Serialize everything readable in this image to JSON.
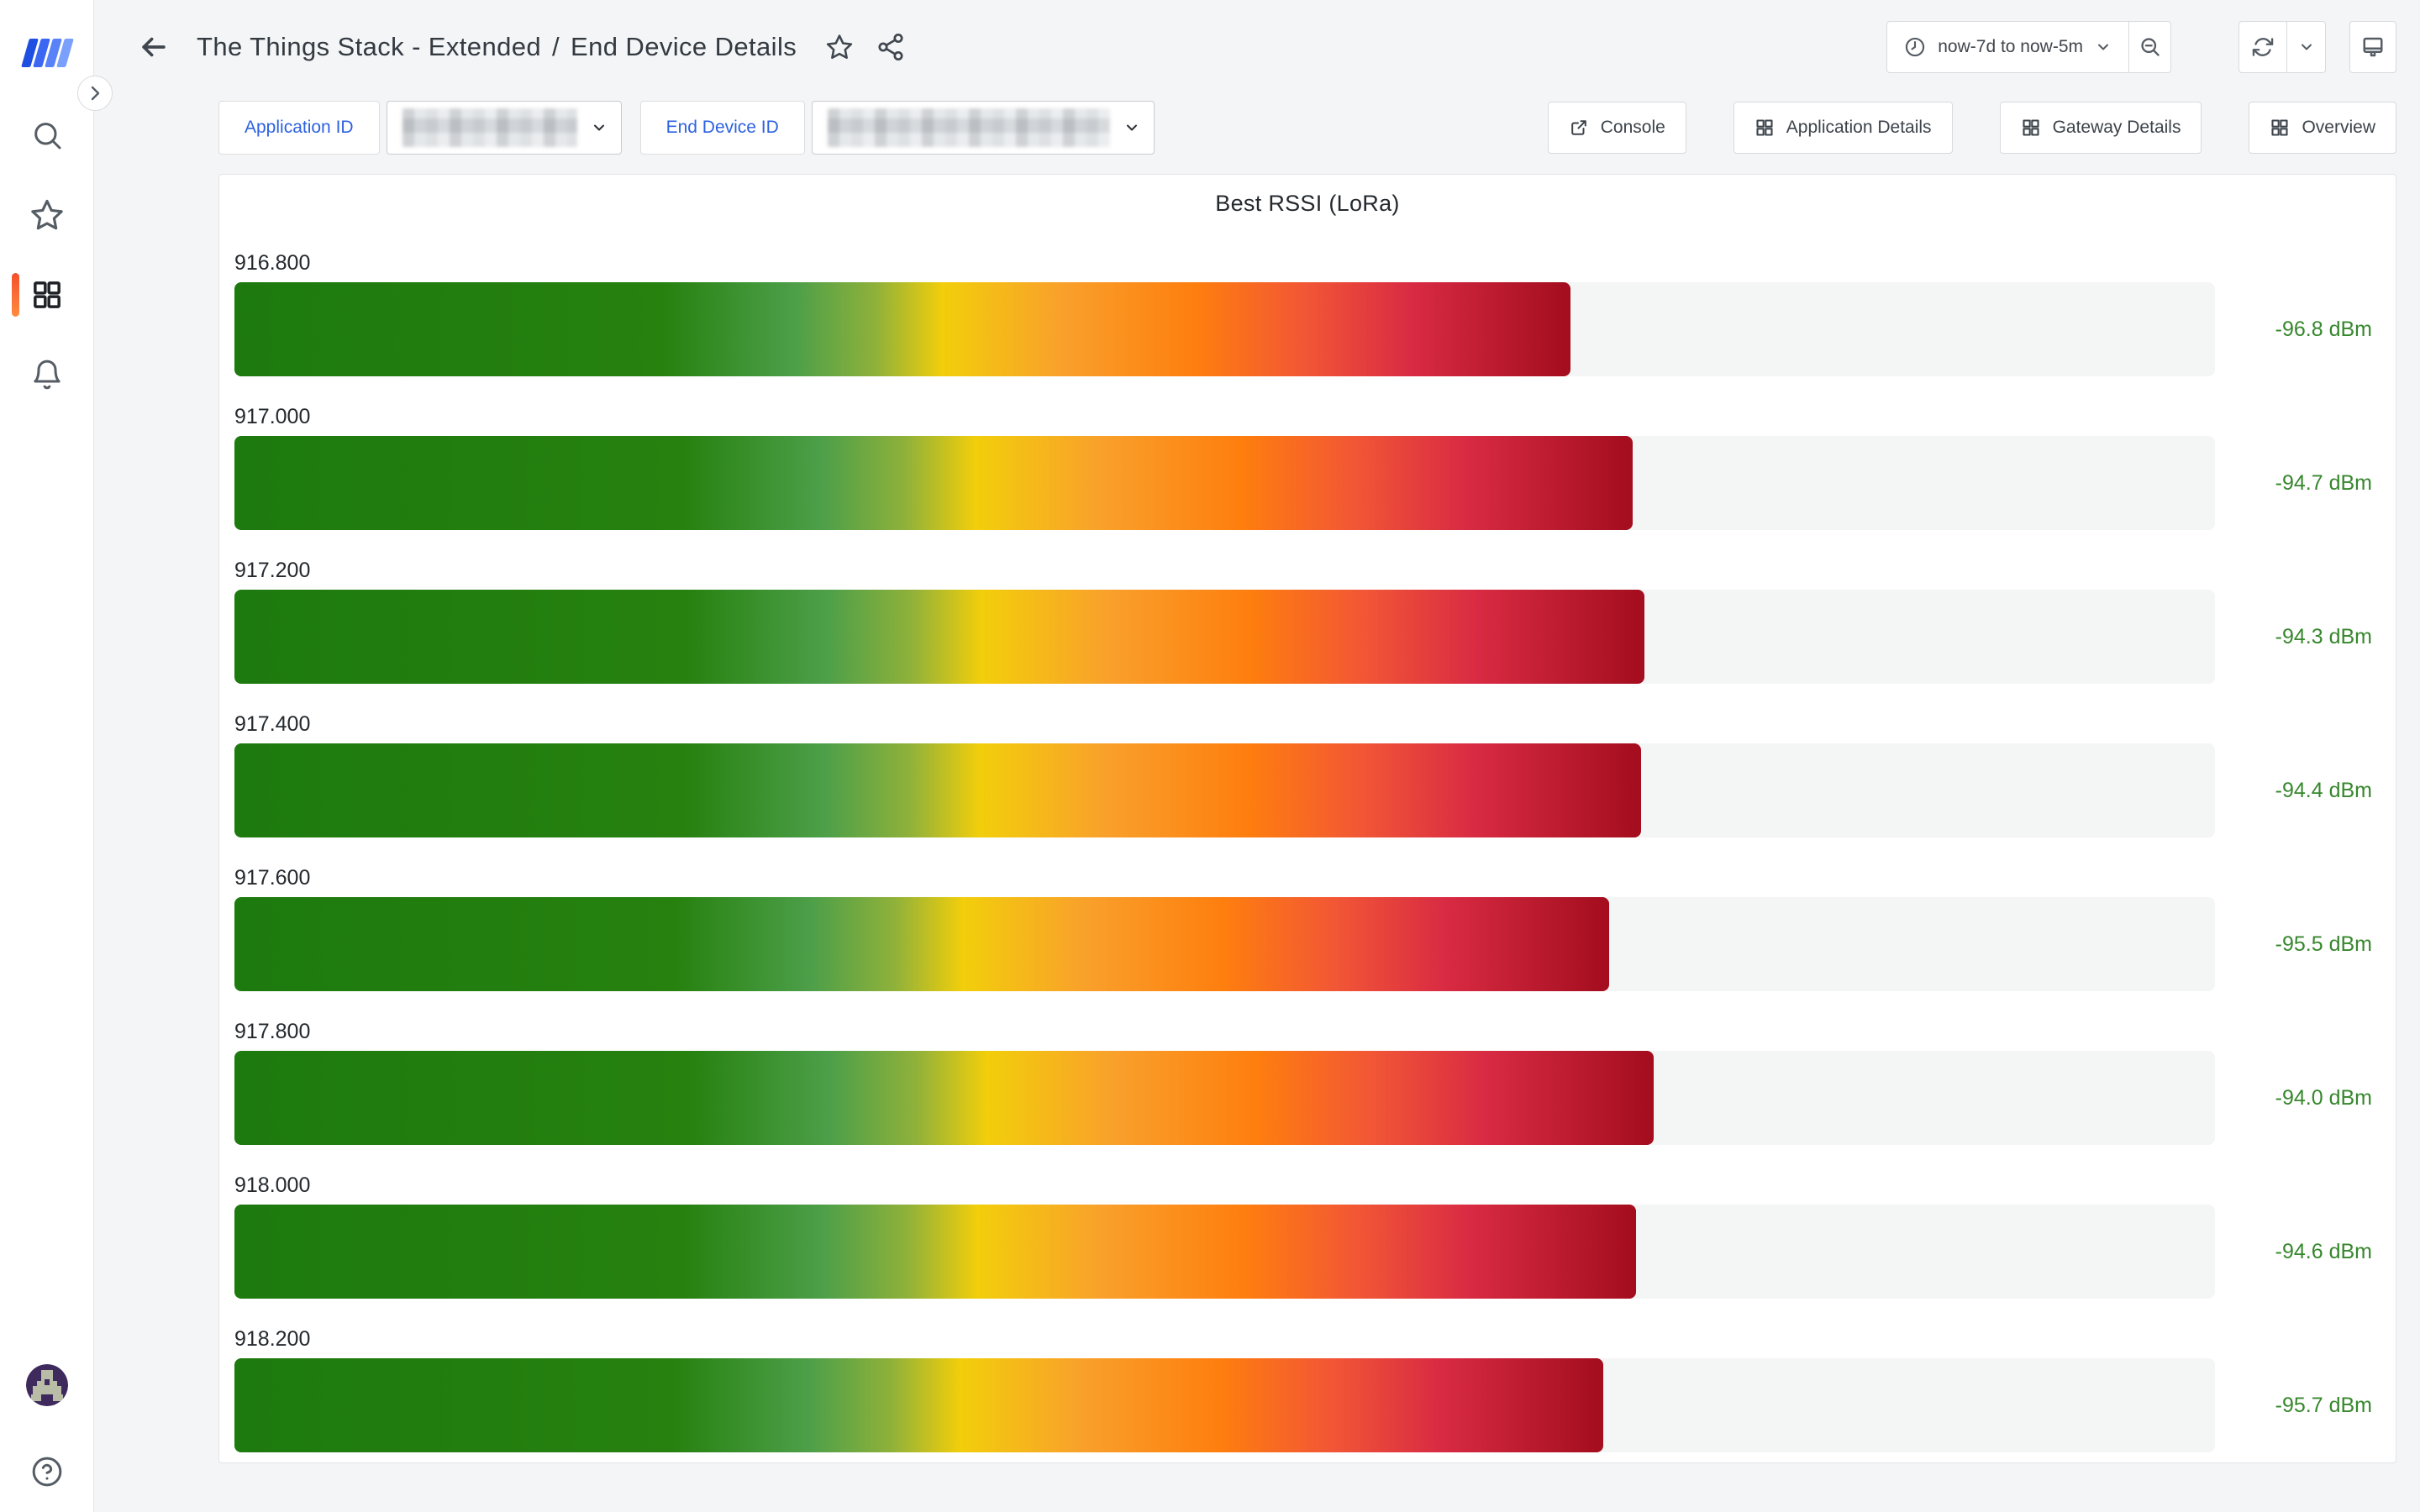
{
  "header": {
    "title_folder": "The Things Stack - Extended",
    "title_separator": "/",
    "title_page": "End Device Details"
  },
  "toolbar": {
    "time_range_label": "now-7d to now-5m"
  },
  "variables": {
    "application_label": "Application ID",
    "application_value_redacted": true,
    "end_device_label": "End Device ID",
    "end_device_value_redacted": true
  },
  "nav_links": {
    "console": "Console",
    "application_details": "Application Details",
    "gateway_details": "Gateway Details",
    "overview": "Overview"
  },
  "sidebar": {
    "logo": "the-things-stack-logo",
    "logo_stripe_colors": [
      "#1F4FE0",
      "#3B67F2",
      "#5A82F8",
      "#7BA0FB"
    ],
    "items": [
      {
        "icon": "search"
      },
      {
        "icon": "star-favorites"
      },
      {
        "icon": "apps-dashboards",
        "active": true
      },
      {
        "icon": "bell-alerting"
      }
    ],
    "footer_items": [
      {
        "icon": "user-avatar"
      },
      {
        "icon": "help-question"
      }
    ]
  },
  "colors": {
    "accent_blue": "#2D62E0",
    "value_green": "#37872D",
    "active_indicator_top": "#F4502D",
    "active_indicator_bottom": "#FF8B3E",
    "bar_track": "#F4F5F5",
    "page_background": "#F4F5F6"
  },
  "chart_data": {
    "type": "bar",
    "orientation": "horizontal",
    "title": "Best RSSI (LoRa)",
    "unit": "dBm",
    "categories": [
      "916.800",
      "917.000",
      "917.200",
      "917.400",
      "917.600",
      "917.800",
      "918.000",
      "918.200"
    ],
    "values": [
      -96.8,
      -94.7,
      -94.3,
      -94.4,
      -95.5,
      -94.0,
      -94.6,
      -95.7
    ],
    "display_values": [
      "-96.8 dBm",
      "-94.7 dBm",
      "-94.3 dBm",
      "-94.4 dBm",
      "-95.5 dBm",
      "-94.0 dBm",
      "-94.6 dBm",
      "-95.7 dBm"
    ],
    "xlim": [
      -142,
      -75
    ],
    "grid": false,
    "legend": "none",
    "value_color": "#37872D",
    "gradient_stops": [
      {
        "color": "#1D7A0E",
        "pos": 0
      },
      {
        "color": "#26810F",
        "pos": 32
      },
      {
        "color": "#4D9F49",
        "pos": 42
      },
      {
        "color": "#8FB13A",
        "pos": 48
      },
      {
        "color": "#F2CE0B",
        "pos": 53
      },
      {
        "color": "#F9A02B",
        "pos": 62
      },
      {
        "color": "#FE7E0E",
        "pos": 72
      },
      {
        "color": "#F25735",
        "pos": 80
      },
      {
        "color": "#D92B43",
        "pos": 88
      },
      {
        "color": "#A30D1E",
        "pos": 100
      }
    ]
  }
}
